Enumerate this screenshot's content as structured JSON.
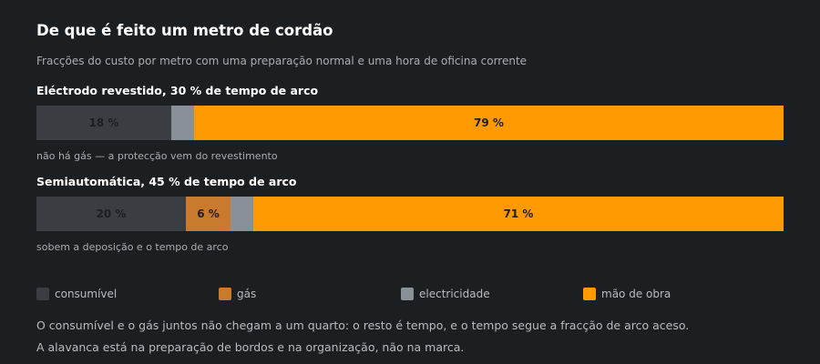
{
  "chart_data": {
    "type": "bar",
    "orientation": "horizontal-stacked",
    "title": "De que é feito um metro de cordão",
    "subtitle": "Fracções do custo por metro com uma preparação normal e uma hora de oficina corrente",
    "categories": [
      "consumível",
      "gás",
      "electricidade",
      "mão de obra"
    ],
    "colors": [
      "#3a3d42",
      "#c97a2c",
      "#8a9097",
      "#ff9a00"
    ],
    "rows": [
      {
        "label": "Eléctrodo revestido, 30 % de tempo de arco",
        "note": "não há gás — a protecção vem do revestimento",
        "values": [
          18,
          0,
          3,
          79
        ],
        "data_labels": [
          "18 %",
          "",
          "",
          "79 %"
        ]
      },
      {
        "label": "Semiautomática, 45 % de tempo de arco",
        "note": "sobem a deposição e o tempo de arco",
        "values": [
          20,
          6,
          3,
          71
        ],
        "data_labels": [
          "20 %",
          "6 %",
          "",
          "71 %"
        ]
      }
    ],
    "legend": [
      {
        "name": "consumível",
        "color": "#3a3d42"
      },
      {
        "name": "gás",
        "color": "#c97a2c"
      },
      {
        "name": "electricidade",
        "color": "#8a9097"
      },
      {
        "name": "mão de obra",
        "color": "#ff9a00"
      }
    ],
    "legend_placement": "bottom"
  },
  "footnote": {
    "line1": "O consumível e o gás juntos não chegam a um quarto: o resto é tempo, e o tempo segue a fracção de arco aceso.",
    "line2": "A alavanca está na preparação de bordos e na organização, não na marca."
  }
}
